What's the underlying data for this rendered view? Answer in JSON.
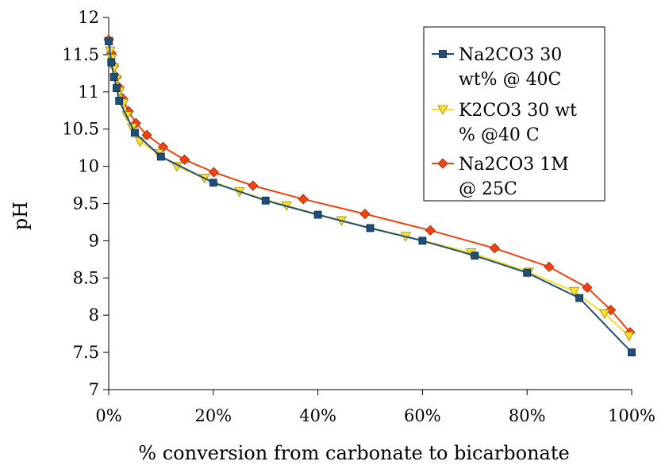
{
  "chart_data": {
    "type": "line",
    "title": "",
    "xlabel": "% conversion from carbonate to bicarbonate",
    "ylabel": "pH",
    "xlim": [
      0,
      100
    ],
    "ylim": [
      7,
      12
    ],
    "x_ticks": [
      0,
      20,
      40,
      60,
      80,
      100
    ],
    "x_tick_labels": [
      "0%",
      "20%",
      "40%",
      "60%",
      "80%",
      "100%"
    ],
    "y_ticks": [
      7,
      7.5,
      8,
      8.5,
      9,
      9.5,
      10,
      10.5,
      11,
      11.5,
      12
    ],
    "y_tick_labels": [
      "7",
      "7.5",
      "8",
      "8.5",
      "9",
      "9.5",
      "10",
      "10.5",
      "11",
      "11.5",
      "12"
    ],
    "grid": false,
    "legend_position": "top-right",
    "series": [
      {
        "name": "Na2CO3 1M @ 25C",
        "color": "#ee4411",
        "edge": "#aa2200",
        "marker": "diamond",
        "x": [
          0,
          0.5,
          1,
          1.5,
          2,
          2.7,
          3.8,
          5.2,
          7.3,
          10.4,
          14.5,
          20.1,
          27.6,
          37.2,
          49,
          61.5,
          73.8,
          84.2,
          91.5,
          96,
          99.7
        ],
        "y": [
          11.7,
          11.52,
          11.35,
          11.2,
          11.06,
          10.91,
          10.74,
          10.58,
          10.42,
          10.26,
          10.09,
          9.92,
          9.74,
          9.56,
          9.36,
          9.14,
          8.9,
          8.65,
          8.37,
          8.07,
          7.77
        ]
      },
      {
        "name": "K2CO3 30 wt % @40 C",
        "color": "#ffdd33",
        "edge": "#998800",
        "marker": "triangle-down",
        "x": [
          0,
          0.3,
          0.6,
          1,
          1.5,
          2.1,
          2.8,
          3.5,
          4.5,
          6,
          9.5,
          13,
          18.3,
          25,
          34,
          44.5,
          56.8,
          69.3,
          80.3,
          89,
          94.8,
          99.5
        ],
        "y": [
          11.68,
          11.55,
          11.45,
          11.32,
          11.17,
          11.01,
          10.85,
          10.68,
          10.52,
          10.33,
          10.17,
          10,
          9.84,
          9.66,
          9.47,
          9.27,
          9.06,
          8.84,
          8.58,
          8.32,
          8.02,
          7.72
        ]
      },
      {
        "name": "Na2CO3 30 wt% @ 40C",
        "color": "#1f4e79",
        "edge": "#0b2a4a",
        "marker": "square",
        "x": [
          0,
          0.5,
          1,
          1.5,
          2,
          5,
          10,
          20,
          30,
          40,
          50,
          60,
          70,
          80,
          90,
          100
        ],
        "y": [
          11.68,
          11.4,
          11.2,
          11.05,
          10.88,
          10.45,
          10.13,
          9.78,
          9.54,
          9.35,
          9.17,
          9,
          8.8,
          8.57,
          8.23,
          7.5
        ]
      }
    ],
    "legend": [
      {
        "lines": [
          "Na2CO3 30",
          "wt% @ 40C"
        ],
        "color": "#1f4e79",
        "edge": "#0b2a4a",
        "marker": "square"
      },
      {
        "lines": [
          "K2CO3 30 wt",
          "% @40 C"
        ],
        "color": "#ffdd33",
        "edge": "#998800",
        "marker": "triangle-down"
      },
      {
        "lines": [
          "Na2CO3 1M",
          "@ 25C"
        ],
        "color": "#ee4411",
        "edge": "#aa2200",
        "marker": "diamond"
      }
    ]
  }
}
